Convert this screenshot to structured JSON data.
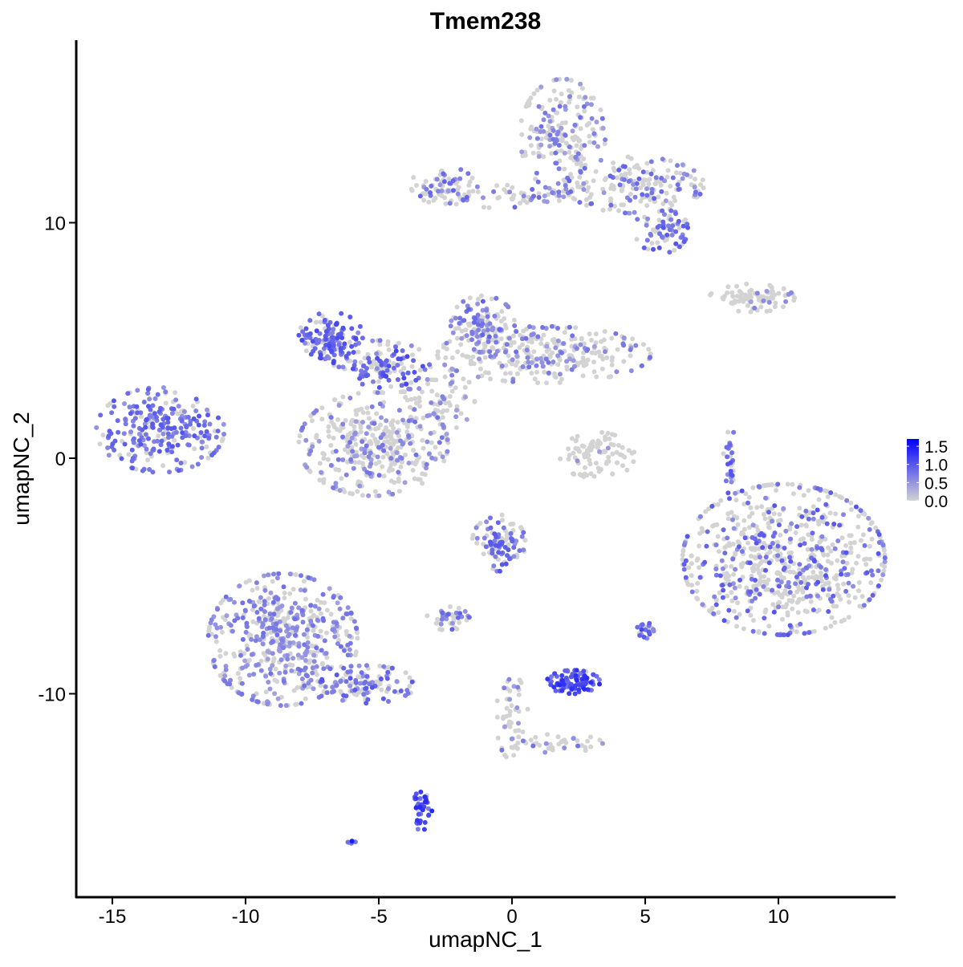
{
  "chart_data": {
    "type": "scatter",
    "title": "Tmem238",
    "xlabel": "umapNC_1",
    "ylabel": "umapNC_2",
    "xlim": [
      -16.5,
      14.5
    ],
    "ylim": [
      -18.5,
      17.7
    ],
    "xticks": [
      -15,
      -10,
      -5,
      0,
      5,
      10
    ],
    "xtick_labels": [
      "-15",
      "-10",
      "-5",
      "0",
      "5",
      "10"
    ],
    "yticks": [
      -10,
      0,
      10
    ],
    "ytick_labels": [
      "-10",
      "0",
      "10"
    ],
    "grid": false,
    "color_scale": {
      "low": "#D3D3D3",
      "high": "#0000FF",
      "min": 0,
      "max": 1.7
    },
    "legend": {
      "position": "right",
      "ticks": [
        0,
        0.5,
        1.0,
        1.5
      ],
      "tick_labels": [
        "0.0",
        "0.5",
        "1.0",
        "1.5"
      ]
    },
    "clusters": [
      {
        "x": -13.2,
        "y": 1.2,
        "sx": 1.2,
        "sy": 0.9,
        "n": 260,
        "p_expr": 0.75,
        "level": 0.9
      },
      {
        "x": 1.9,
        "y": 13.7,
        "sx": 0.8,
        "sy": 1.2,
        "n": 200,
        "p_expr": 0.35,
        "level": 0.7
      },
      {
        "x": 4.6,
        "y": 11.6,
        "sx": 1.3,
        "sy": 0.6,
        "n": 180,
        "p_expr": 0.4,
        "level": 0.8
      },
      {
        "x": 5.6,
        "y": 9.7,
        "sx": 0.5,
        "sy": 0.5,
        "n": 70,
        "p_expr": 0.6,
        "level": 0.9
      },
      {
        "x": -2.6,
        "y": 11.6,
        "sx": 0.6,
        "sy": 0.4,
        "n": 70,
        "p_expr": 0.4,
        "level": 0.8
      },
      {
        "x": 0.4,
        "y": 11.1,
        "sx": 1.6,
        "sy": 0.25,
        "n": 60,
        "p_expr": 0.4,
        "level": 0.8
      },
      {
        "x": 1.2,
        "y": 4.4,
        "sx": 2.0,
        "sy": 0.6,
        "n": 300,
        "p_expr": 0.25,
        "level": 0.7
      },
      {
        "x": -1.1,
        "y": 5.7,
        "sx": 0.6,
        "sy": 0.6,
        "n": 110,
        "p_expr": 0.5,
        "level": 0.8
      },
      {
        "x": -6.8,
        "y": 5.2,
        "sx": 0.6,
        "sy": 0.5,
        "n": 130,
        "p_expr": 0.8,
        "level": 1.0
      },
      {
        "x": -4.9,
        "y": 4.0,
        "sx": 0.9,
        "sy": 0.5,
        "n": 130,
        "p_expr": 0.6,
        "level": 1.0
      },
      {
        "x": -5.2,
        "y": 0.6,
        "sx": 1.4,
        "sy": 1.1,
        "n": 380,
        "p_expr": 0.3,
        "level": 0.7
      },
      {
        "x": -2.8,
        "y": 2.5,
        "sx": 0.7,
        "sy": 0.7,
        "n": 80,
        "p_expr": 0.3,
        "level": 0.7
      },
      {
        "x": 3.2,
        "y": 0.1,
        "sx": 0.7,
        "sy": 0.5,
        "n": 90,
        "p_expr": 0.05,
        "level": 0.5
      },
      {
        "x": 9.0,
        "y": 6.8,
        "sx": 0.8,
        "sy": 0.3,
        "n": 90,
        "p_expr": 0.1,
        "level": 0.6
      },
      {
        "x": 10.2,
        "y": -4.3,
        "sx": 1.9,
        "sy": 1.6,
        "n": 700,
        "p_expr": 0.3,
        "level": 0.9
      },
      {
        "x": -8.6,
        "y": -7.7,
        "sx": 1.4,
        "sy": 1.4,
        "n": 520,
        "p_expr": 0.55,
        "level": 0.7
      },
      {
        "x": -5.4,
        "y": -9.6,
        "sx": 0.9,
        "sy": 0.4,
        "n": 110,
        "p_expr": 0.5,
        "level": 0.9
      },
      {
        "x": -0.5,
        "y": -3.6,
        "sx": 0.5,
        "sy": 0.6,
        "n": 100,
        "p_expr": 0.5,
        "level": 0.9
      },
      {
        "x": -2.4,
        "y": -6.8,
        "sx": 0.4,
        "sy": 0.25,
        "n": 40,
        "p_expr": 0.5,
        "level": 0.8
      },
      {
        "x": 2.3,
        "y": -9.5,
        "sx": 0.5,
        "sy": 0.25,
        "n": 90,
        "p_expr": 0.95,
        "level": 1.2
      },
      {
        "x": -3.4,
        "y": -14.8,
        "sx": 0.2,
        "sy": 0.5,
        "n": 40,
        "p_expr": 0.9,
        "level": 1.2
      },
      {
        "x": 0.0,
        "y": -11.0,
        "sx": 0.3,
        "sy": 0.9,
        "n": 50,
        "p_expr": 0.2,
        "level": 0.7
      },
      {
        "x": 1.6,
        "y": -12.1,
        "sx": 0.9,
        "sy": 0.2,
        "n": 40,
        "p_expr": 0.2,
        "level": 0.7
      },
      {
        "x": 8.2,
        "y": -0.3,
        "sx": 0.15,
        "sy": 0.8,
        "n": 30,
        "p_expr": 0.6,
        "level": 0.9
      },
      {
        "x": 5.0,
        "y": -7.3,
        "sx": 0.2,
        "sy": 0.2,
        "n": 20,
        "p_expr": 0.8,
        "level": 1.0
      },
      {
        "x": -6.0,
        "y": -16.3,
        "sx": 0.1,
        "sy": 0.05,
        "n": 6,
        "p_expr": 1.0,
        "level": 1.3
      }
    ]
  }
}
